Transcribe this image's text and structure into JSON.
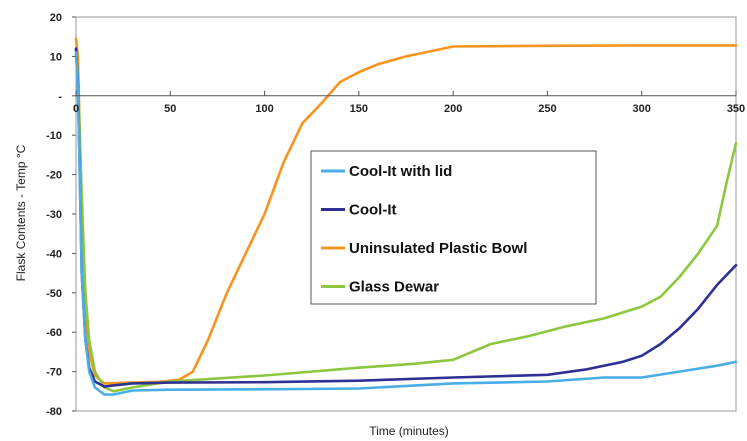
{
  "chart_data": {
    "type": "line",
    "xlabel": "Time (minutes)",
    "ylabel": "Flask Contents - Temp °C",
    "xlim": [
      0,
      350
    ],
    "ylim": [
      -80,
      20
    ],
    "x_ticks": [
      0,
      50,
      100,
      150,
      200,
      250,
      300,
      350
    ],
    "x_tick_labels": [
      "0",
      "50",
      "100",
      "150",
      "200",
      "250",
      "300",
      "350"
    ],
    "y_ticks": [
      20,
      10,
      0,
      -10,
      -20,
      -30,
      -40,
      -50,
      -60,
      -70,
      -80
    ],
    "y_tick_labels": [
      "20",
      "10",
      "-",
      "-10",
      "-20",
      "-30",
      "-40",
      "-50",
      "-60",
      "-70",
      "-80"
    ],
    "grid": "none",
    "legend_position": "center",
    "series": [
      {
        "name": "Cool-It with lid",
        "color": "#4aaee6",
        "points": [
          [
            0,
            11
          ],
          [
            1,
            2
          ],
          [
            2,
            -20
          ],
          [
            3,
            -45
          ],
          [
            5,
            -62
          ],
          [
            7,
            -70
          ],
          [
            10,
            -74
          ],
          [
            15,
            -75.8
          ],
          [
            20,
            -75.8
          ],
          [
            30,
            -74.8
          ],
          [
            50,
            -74.6
          ],
          [
            100,
            -74.5
          ],
          [
            150,
            -74.3
          ],
          [
            200,
            -73
          ],
          [
            250,
            -72.5
          ],
          [
            280,
            -71.5
          ],
          [
            300,
            -71.5
          ],
          [
            320,
            -70
          ],
          [
            340,
            -68.5
          ],
          [
            350,
            -67.5
          ]
        ]
      },
      {
        "name": "Cool-It",
        "color": "#2e3192",
        "points": [
          [
            0,
            12
          ],
          [
            1,
            3
          ],
          [
            2,
            -20
          ],
          [
            3,
            -45
          ],
          [
            5,
            -62
          ],
          [
            7,
            -69
          ],
          [
            10,
            -72.5
          ],
          [
            15,
            -73.8
          ],
          [
            20,
            -73.5
          ],
          [
            30,
            -73
          ],
          [
            50,
            -72.8
          ],
          [
            100,
            -72.7
          ],
          [
            150,
            -72.3
          ],
          [
            200,
            -71.5
          ],
          [
            250,
            -70.8
          ],
          [
            270,
            -69.5
          ],
          [
            290,
            -67.5
          ],
          [
            300,
            -66
          ],
          [
            310,
            -63
          ],
          [
            320,
            -59
          ],
          [
            330,
            -54
          ],
          [
            340,
            -48
          ],
          [
            350,
            -43
          ]
        ]
      },
      {
        "name": "Uninsulated Plastic Bowl",
        "color": "#f7941d",
        "points": [
          [
            0,
            14.5
          ],
          [
            1,
            10
          ],
          [
            3,
            -30
          ],
          [
            5,
            -55
          ],
          [
            7,
            -65
          ],
          [
            10,
            -71
          ],
          [
            15,
            -73
          ],
          [
            30,
            -72.8
          ],
          [
            45,
            -72.6
          ],
          [
            55,
            -72
          ],
          [
            62,
            -70
          ],
          [
            70,
            -62
          ],
          [
            80,
            -50
          ],
          [
            90,
            -40
          ],
          [
            100,
            -30
          ],
          [
            110,
            -17
          ],
          [
            120,
            -7
          ],
          [
            130,
            -2
          ],
          [
            140,
            3.5
          ],
          [
            150,
            6
          ],
          [
            160,
            8
          ],
          [
            175,
            10
          ],
          [
            190,
            11.5
          ],
          [
            200,
            12.5
          ],
          [
            220,
            12.6
          ],
          [
            250,
            12.7
          ],
          [
            300,
            12.8
          ],
          [
            350,
            12.8
          ]
        ]
      },
      {
        "name": "Glass Dewar",
        "color": "#8dc63f",
        "points": [
          [
            0,
            10
          ],
          [
            1,
            5
          ],
          [
            3,
            -25
          ],
          [
            5,
            -50
          ],
          [
            7,
            -62
          ],
          [
            10,
            -70
          ],
          [
            15,
            -74
          ],
          [
            20,
            -75
          ],
          [
            30,
            -74
          ],
          [
            50,
            -72.5
          ],
          [
            100,
            -71
          ],
          [
            150,
            -69
          ],
          [
            180,
            -68
          ],
          [
            200,
            -67
          ],
          [
            220,
            -63
          ],
          [
            240,
            -61
          ],
          [
            260,
            -58.5
          ],
          [
            280,
            -56.5
          ],
          [
            300,
            -53.5
          ],
          [
            310,
            -51
          ],
          [
            320,
            -46
          ],
          [
            330,
            -40
          ],
          [
            340,
            -33
          ],
          [
            345,
            -22
          ],
          [
            350,
            -12
          ]
        ]
      }
    ]
  }
}
